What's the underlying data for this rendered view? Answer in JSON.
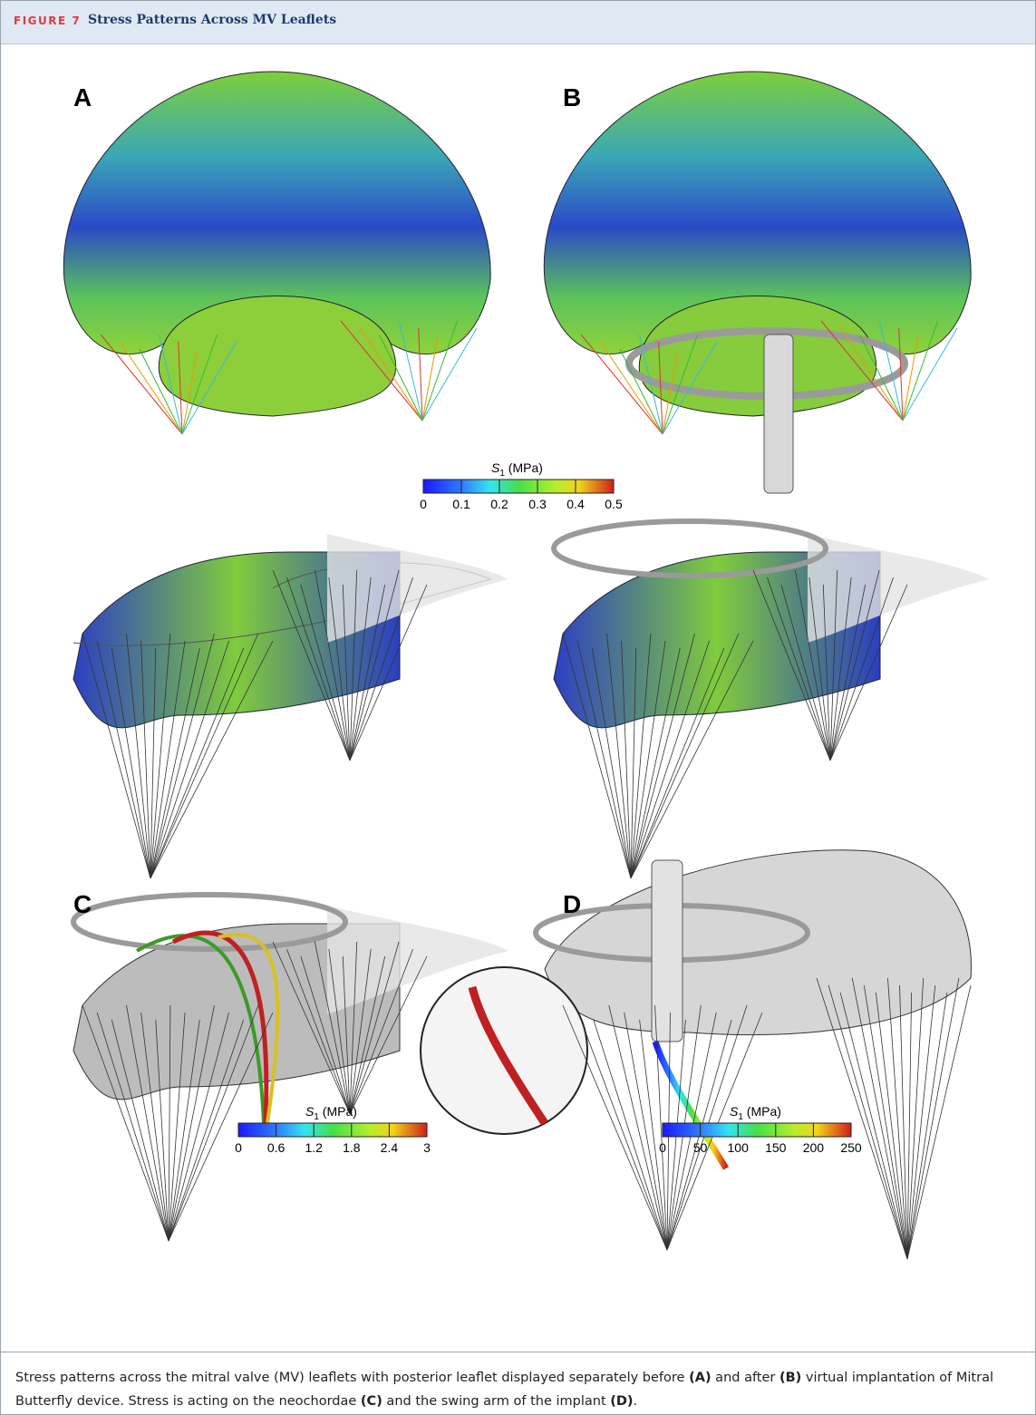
{
  "header": {
    "label": "FIGURE 7",
    "title": "Stress Patterns Across MV Leaflets"
  },
  "panels": {
    "a": "A",
    "b": "B",
    "c": "C",
    "d": "D"
  },
  "colorbars": [
    {
      "symbol": "S",
      "subscript": "1",
      "unit": "(MPa)",
      "lim": [
        0,
        0.5
      ],
      "ticks": [
        0,
        0.1,
        0.2,
        0.3,
        0.4,
        0.5
      ]
    },
    {
      "symbol": "S",
      "subscript": "1",
      "unit": "(MPa)",
      "lim": [
        0,
        3
      ],
      "ticks": [
        0,
        0.6,
        1.2,
        1.8,
        2.4,
        3
      ]
    },
    {
      "symbol": "S",
      "subscript": "1",
      "unit": "(MPa)",
      "lim": [
        0,
        250
      ],
      "ticks": [
        0,
        50,
        100,
        150,
        200,
        250
      ]
    }
  ],
  "caption": [
    {
      "text": "Stress patterns across the mitral valve (MV) leaflets with posterior leaflet displayed separately before ",
      "bold": false
    },
    {
      "text": "(A)",
      "bold": true
    },
    {
      "text": " and after ",
      "bold": false
    },
    {
      "text": "(B)",
      "bold": true
    },
    {
      "text": " virtual implantation of Mitral Butterfly device. Stress is acting on the neochordae ",
      "bold": false
    },
    {
      "text": "(C)",
      "bold": true
    },
    {
      "text": " and the swing arm of the implant ",
      "bold": false
    },
    {
      "text": "(D)",
      "bold": true
    },
    {
      "text": ".",
      "bold": false
    }
  ]
}
